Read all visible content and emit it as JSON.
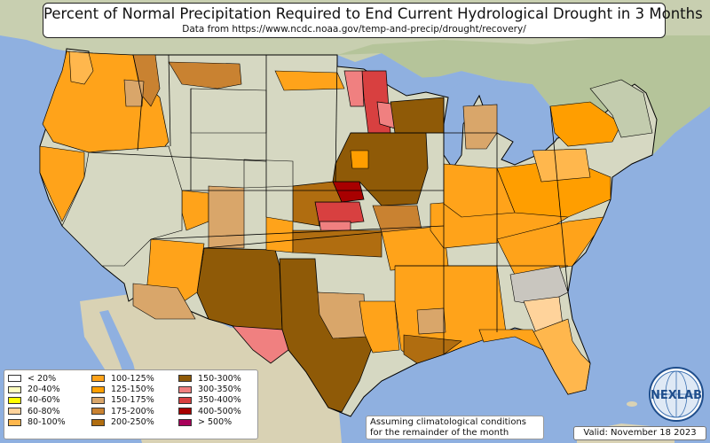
{
  "header": {
    "title": "Percent of Normal Precipitation Required to End Current Hydrological Drought in 3 Months",
    "subtitle": "Data from https://www.ncdc.noaa.gov/temp-and-precip/drought/recovery/"
  },
  "legend": {
    "items": [
      {
        "label": "< 20%",
        "color": "#ffffff"
      },
      {
        "label": "20-40%",
        "color": "#ffffc0"
      },
      {
        "label": "40-60%",
        "color": "#ffff00"
      },
      {
        "label": "60-80%",
        "color": "#ffd39b"
      },
      {
        "label": "80-100%",
        "color": "#ffb74d"
      },
      {
        "label": "100-125%",
        "color": "#ffa31a"
      },
      {
        "label": "125-150%",
        "color": "#ff9e00"
      },
      {
        "label": "150-175%",
        "color": "#d9a66a"
      },
      {
        "label": "175-200%",
        "color": "#c98231"
      },
      {
        "label": "200-250%",
        "color": "#b06d10"
      },
      {
        "label": "150-300%",
        "color": "#8f5a07"
      },
      {
        "label": "300-350%",
        "color": "#f08080"
      },
      {
        "label": "350-400%",
        "color": "#d84040"
      },
      {
        "label": "400-500%",
        "color": "#a80000"
      },
      {
        "label": "> 500%",
        "color": "#a8005a"
      }
    ]
  },
  "note": {
    "line1": "Assuming climatological conditions",
    "line2": "for the remainder of the month"
  },
  "valid": "Valid: November 18 2023",
  "logo": {
    "text": "NEXLAB",
    "icon": "globe-icon"
  },
  "colors": {
    "ocean": "#8fb0e0",
    "land_base": "#d6d8c2",
    "land_green": "#b9c99a",
    "state_border": "#000000"
  }
}
